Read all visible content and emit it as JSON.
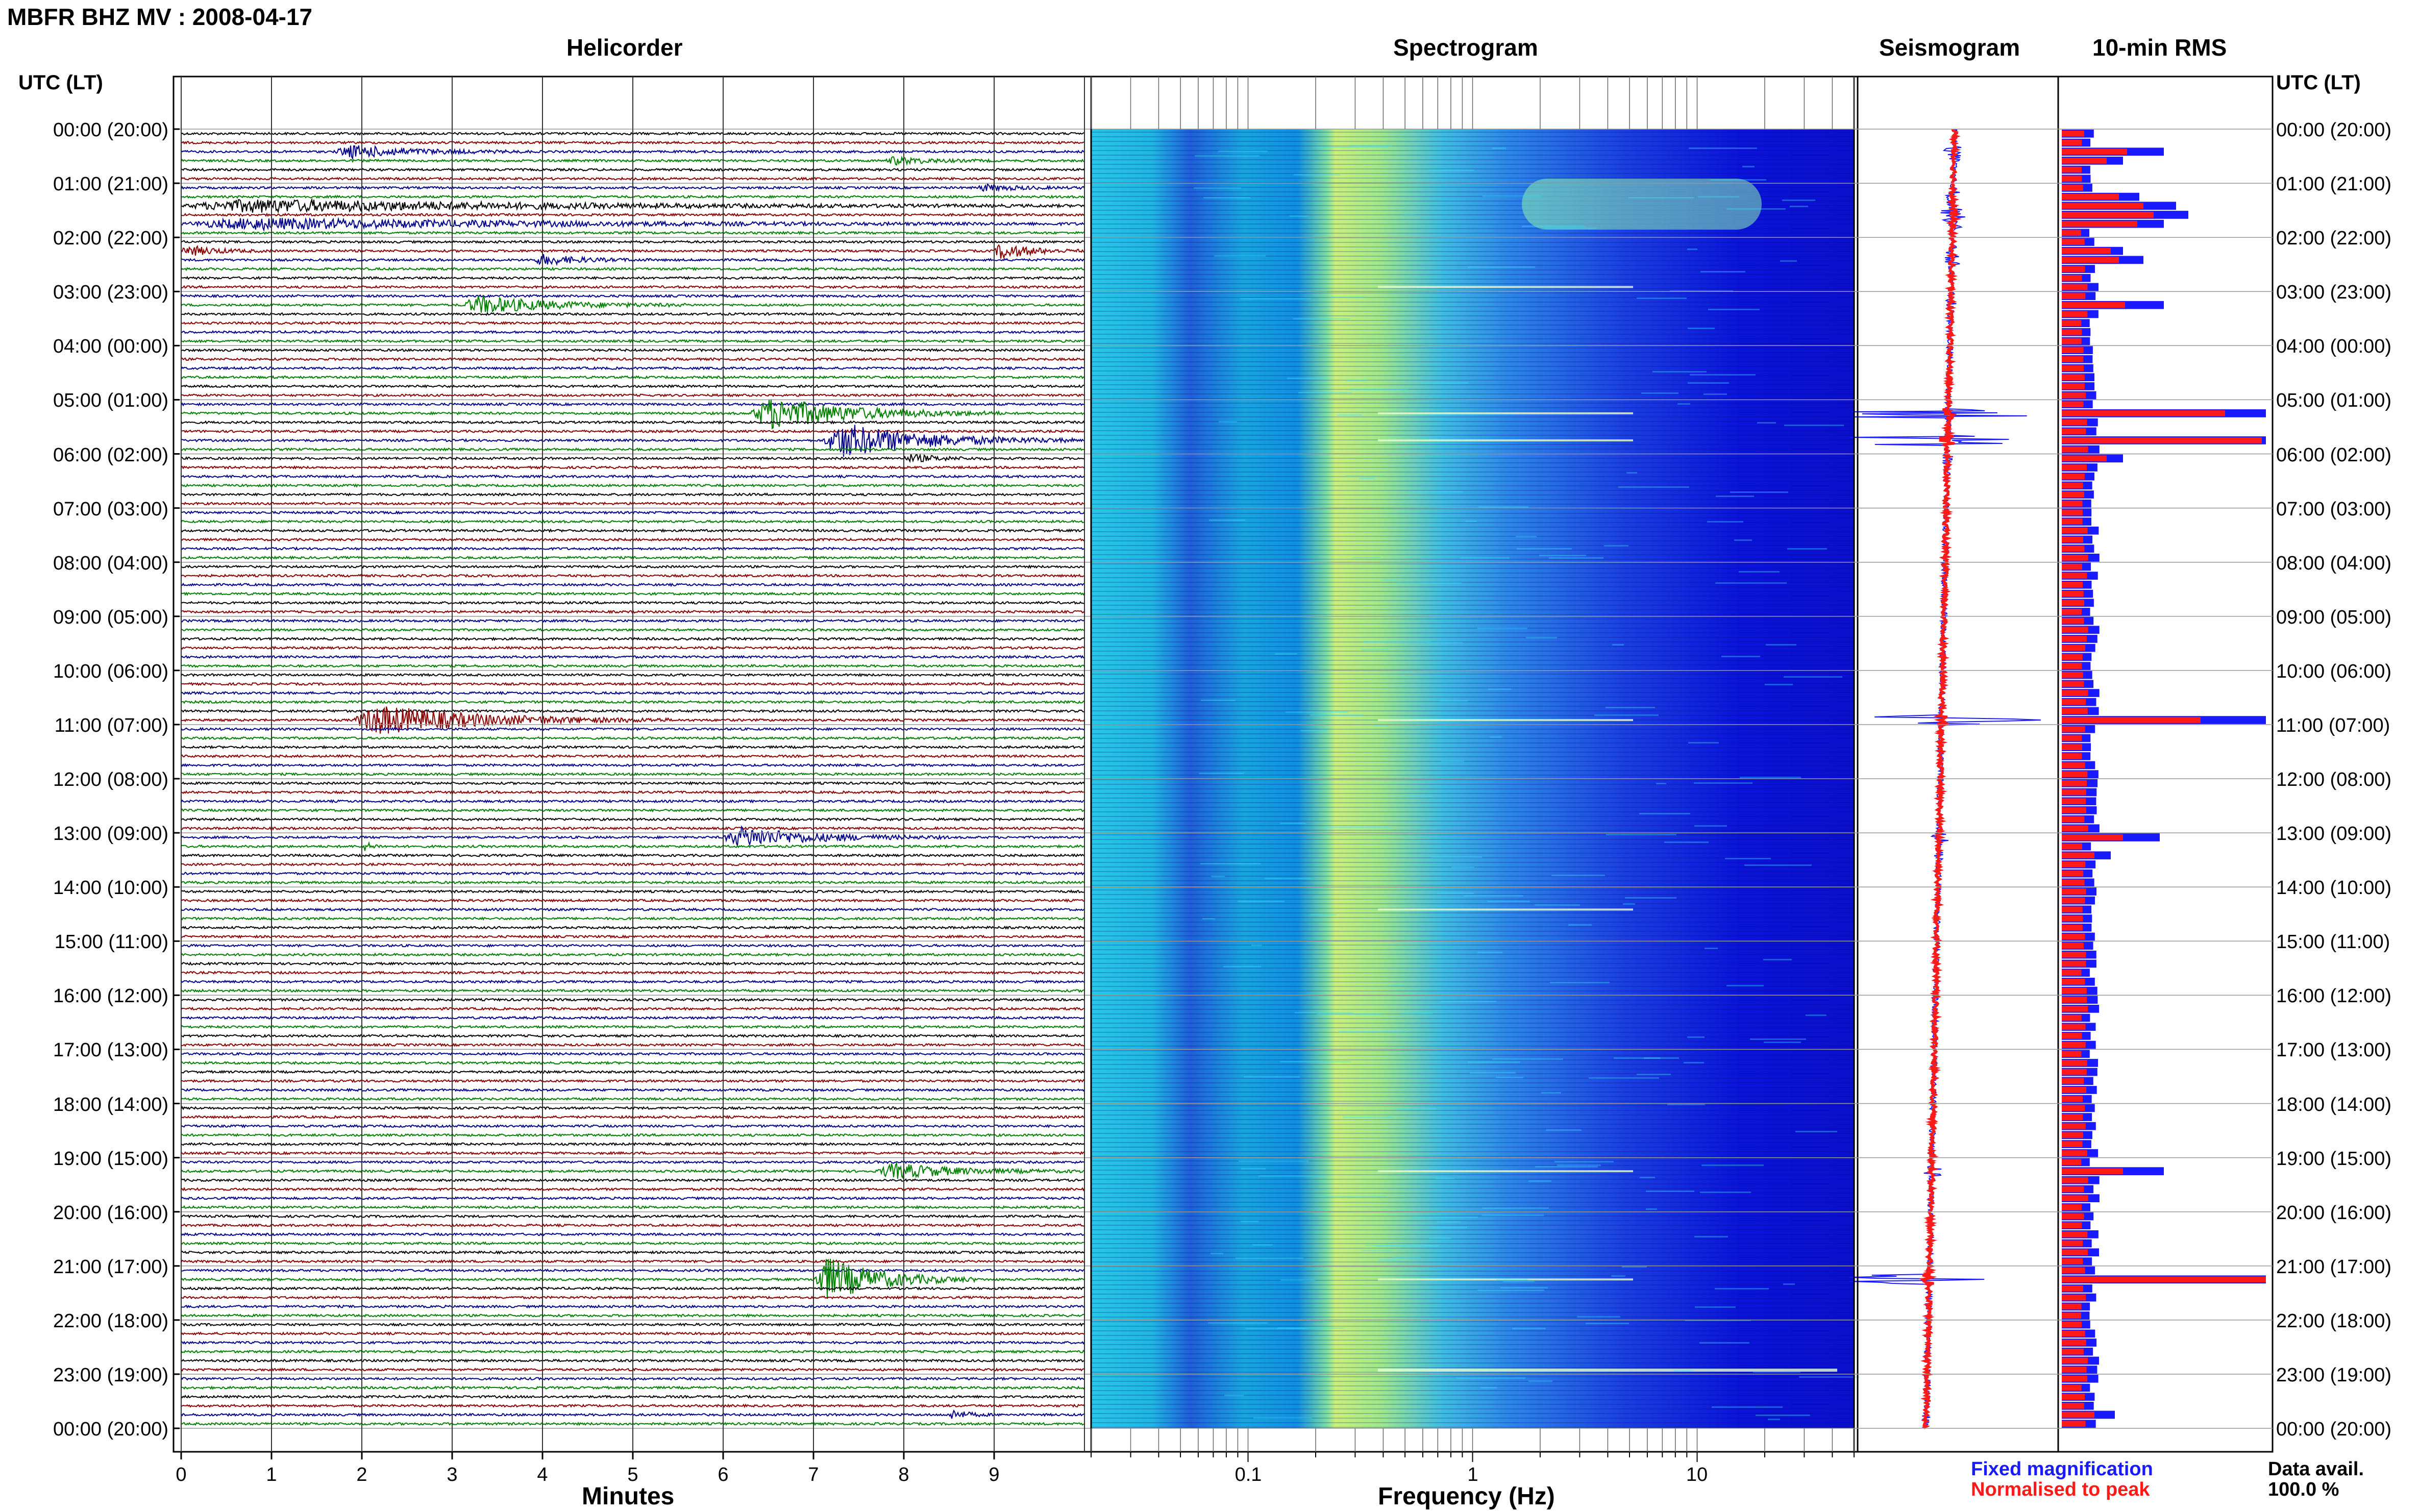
{
  "header": {
    "title": "MBFR BHZ MV : 2008-04-17",
    "utc_lt_left": "UTC (LT)",
    "utc_lt_right": "UTC (LT)"
  },
  "panels": {
    "helicorder": "Helicorder",
    "spectrogram": "Spectrogram",
    "seismogram": "Seismogram",
    "rms": "10-min RMS"
  },
  "legend": {
    "fixed": "Fixed magnification",
    "normalised": "Normalised to peak",
    "fixed_color": "#1a1aff",
    "normalised_color": "#ff1a1a",
    "data_avail_label": "Data avail.",
    "data_avail_value": "100.0 %"
  },
  "colors": {
    "trace_cycle": [
      "#000000",
      "#8b0000",
      "#00008b",
      "#008000"
    ],
    "spectrogram_low": "#0000c8",
    "spectrogram_high": "#ffff66"
  },
  "chart_data": [
    {
      "type": "line",
      "title": "Helicorder",
      "xlabel": "Minutes",
      "xticks": [
        0,
        1,
        2,
        3,
        4,
        5,
        6,
        7,
        8,
        9
      ],
      "xlim": [
        0,
        10
      ],
      "ylabel": "UTC (LT)",
      "row_interval_minutes": 10,
      "rows": 144,
      "time_ticks": [
        "00:00 (20:00)",
        "01:00 (21:00)",
        "02:00 (22:00)",
        "03:00 (23:00)",
        "04:00 (00:00)",
        "05:00 (01:00)",
        "06:00 (02:00)",
        "07:00 (03:00)",
        "08:00 (04:00)",
        "09:00 (05:00)",
        "10:00 (06:00)",
        "11:00 (07:00)",
        "12:00 (08:00)",
        "13:00 (09:00)",
        "14:00 (10:00)",
        "15:00 (11:00)",
        "16:00 (12:00)",
        "17:00 (13:00)",
        "18:00 (14:00)",
        "19:00 (15:00)",
        "20:00 (16:00)",
        "21:00 (17:00)",
        "22:00 (18:00)",
        "23:00 (19:00)",
        "00:00 (20:00)"
      ],
      "events": [
        {
          "row": 2,
          "minute": 1.7,
          "dur": 2.2,
          "amp": 2.5
        },
        {
          "row": 3,
          "minute": 7.8,
          "dur": 1.2,
          "amp": 1.5
        },
        {
          "row": 6,
          "minute": 8.8,
          "dur": 1.2,
          "amp": 1.2
        },
        {
          "row": 8,
          "minute": 0.0,
          "dur": 10,
          "amp": 2.5
        },
        {
          "row": 10,
          "minute": 0.0,
          "dur": 10,
          "amp": 2.2
        },
        {
          "row": 13,
          "minute": 0.0,
          "dur": 1.0,
          "amp": 2.0
        },
        {
          "row": 13,
          "minute": 9.0,
          "dur": 1.0,
          "amp": 3.2
        },
        {
          "row": 14,
          "minute": 3.9,
          "dur": 1.3,
          "amp": 2.0
        },
        {
          "row": 19,
          "minute": 3.1,
          "dur": 2.5,
          "amp": 3.5
        },
        {
          "row": 31,
          "minute": 6.3,
          "dur": 2.8,
          "amp": 6.5
        },
        {
          "row": 34,
          "minute": 7.1,
          "dur": 2.8,
          "amp": 7.0
        },
        {
          "row": 36,
          "minute": 8.0,
          "dur": 1.0,
          "amp": 1.5
        },
        {
          "row": 65,
          "minute": 1.9,
          "dur": 3.5,
          "amp": 6.0
        },
        {
          "row": 78,
          "minute": 6.0,
          "dur": 2.5,
          "amp": 4.0
        },
        {
          "row": 79,
          "minute": 2.0,
          "dur": 0.3,
          "amp": 1.8
        },
        {
          "row": 115,
          "minute": 7.7,
          "dur": 2.3,
          "amp": 3.0
        },
        {
          "row": 127,
          "minute": 7.0,
          "dur": 1.8,
          "amp": 9.0
        },
        {
          "row": 142,
          "minute": 8.5,
          "dur": 0.5,
          "amp": 2.0
        }
      ]
    },
    {
      "type": "heatmap",
      "title": "Spectrogram",
      "xlabel": "Frequency (Hz)",
      "xscale": "log",
      "xlim": [
        0.02,
        50
      ],
      "xticks": [
        0.1,
        1,
        10
      ],
      "xticklabels": [
        "0.1",
        "1",
        "10"
      ],
      "bright_band_hz": [
        0.2,
        0.5
      ]
    },
    {
      "type": "line",
      "title": "Seismogram",
      "series": [
        {
          "name": "Fixed magnification",
          "color": "#1a1aff"
        },
        {
          "name": "Normalised to peak",
          "color": "#ff1a1a"
        }
      ]
    },
    {
      "type": "bar",
      "title": "10-min RMS",
      "orientation": "horizontal",
      "xlim": [
        0,
        1
      ],
      "rows": 144,
      "baseline": 0.16,
      "peaks": [
        {
          "row": 2,
          "fixed": 0.5,
          "norm": 0.32
        },
        {
          "row": 3,
          "fixed": 0.3,
          "norm": 0.22
        },
        {
          "row": 7,
          "fixed": 0.38,
          "norm": 0.28
        },
        {
          "row": 8,
          "fixed": 0.56,
          "norm": 0.4
        },
        {
          "row": 9,
          "fixed": 0.62,
          "norm": 0.45
        },
        {
          "row": 10,
          "fixed": 0.5,
          "norm": 0.37
        },
        {
          "row": 13,
          "fixed": 0.3,
          "norm": 0.24
        },
        {
          "row": 14,
          "fixed": 0.4,
          "norm": 0.28
        },
        {
          "row": 19,
          "fixed": 0.5,
          "norm": 0.31
        },
        {
          "row": 31,
          "fixed": 1.0,
          "norm": 0.8
        },
        {
          "row": 34,
          "fixed": 1.0,
          "norm": 0.98
        },
        {
          "row": 36,
          "fixed": 0.3,
          "norm": 0.22
        },
        {
          "row": 65,
          "fixed": 1.0,
          "norm": 0.68
        },
        {
          "row": 78,
          "fixed": 0.48,
          "norm": 0.3
        },
        {
          "row": 80,
          "fixed": 0.24,
          "norm": 0.16
        },
        {
          "row": 115,
          "fixed": 0.5,
          "norm": 0.3
        },
        {
          "row": 127,
          "fixed": 1.0,
          "norm": 1.0
        },
        {
          "row": 142,
          "fixed": 0.26,
          "norm": 0.16
        }
      ]
    }
  ]
}
